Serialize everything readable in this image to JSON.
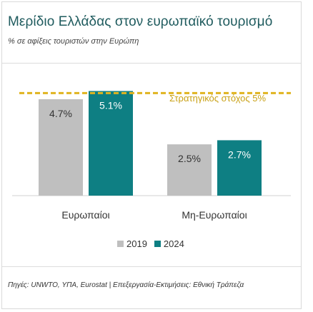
{
  "title": "Μερίδιο Ελλάδας στον ευρωπαϊκό τουρισμό",
  "subtitle": "% σε αφίξεις τουριστών στην Ευρώπη",
  "target": {
    "label": "Στρατηγικός στόχος 5%",
    "value": 5.0,
    "color": "#e0b420"
  },
  "source": "Πηγές: UNWTO, ΥΠΑ, Eurostat | Επεξεργασία-Εκτιμήσεις: Εθνική Τράπεζα",
  "colors": {
    "y2019": "#bfbfbf",
    "y2024": "#0e7f83",
    "title": "#1f5b5e"
  },
  "chart_data": {
    "type": "bar",
    "categories": [
      "Ευρωπαίοι",
      "Μη-Ευρωπαίοι"
    ],
    "series": [
      {
        "name": "2019",
        "values": [
          4.7,
          2.5
        ],
        "labels": [
          "4.7%",
          "2.5%"
        ]
      },
      {
        "name": "2024",
        "values": [
          5.1,
          2.7
        ],
        "labels": [
          "5.1%",
          "2.7%"
        ]
      }
    ],
    "ylim": [
      0,
      6.3
    ],
    "reference_line": 5.0,
    "legend_position": "bottom"
  }
}
